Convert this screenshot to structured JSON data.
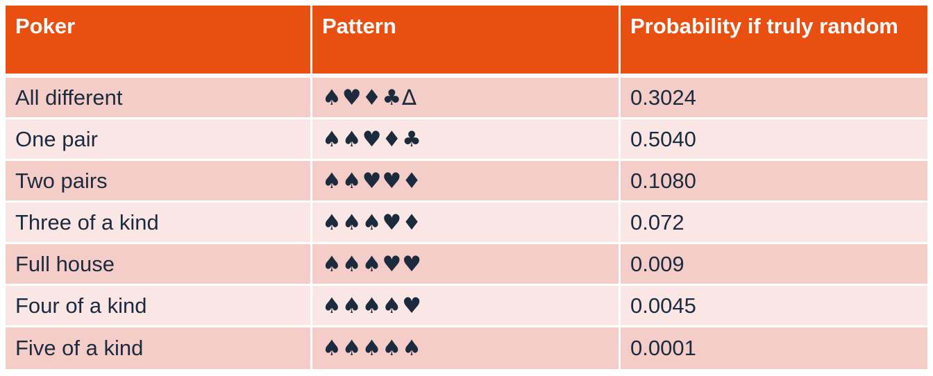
{
  "table": {
    "headers": [
      "Poker",
      "Pattern",
      "Probability if truly random"
    ],
    "rows": [
      {
        "poker": "All different",
        "pattern": "♠♥♦♣∆",
        "probability": "0.3024"
      },
      {
        "poker": "One pair",
        "pattern": "♠♠♥♦♣",
        "probability": "0.5040"
      },
      {
        "poker": "Two pairs",
        "pattern": "♠♠♥♥♦",
        "probability": "0.1080"
      },
      {
        "poker": "Three of a kind",
        "pattern": "♠♠♠♥♦",
        "probability": "0.072"
      },
      {
        "poker": "Full house",
        "pattern": "♠♠♠♥♥",
        "probability": "0.009"
      },
      {
        "poker": "Four of a kind",
        "pattern": "♠♠♠♠♥",
        "probability": "0.0045"
      },
      {
        "poker": "Five of a kind",
        "pattern": "♠♠♠♠♠",
        "probability": "0.0001"
      }
    ]
  },
  "colors": {
    "header_bg": "#ea4f12",
    "row_odd": "#f5cdc8",
    "row_even": "#fae7e5",
    "text": "#1b2a3d"
  }
}
